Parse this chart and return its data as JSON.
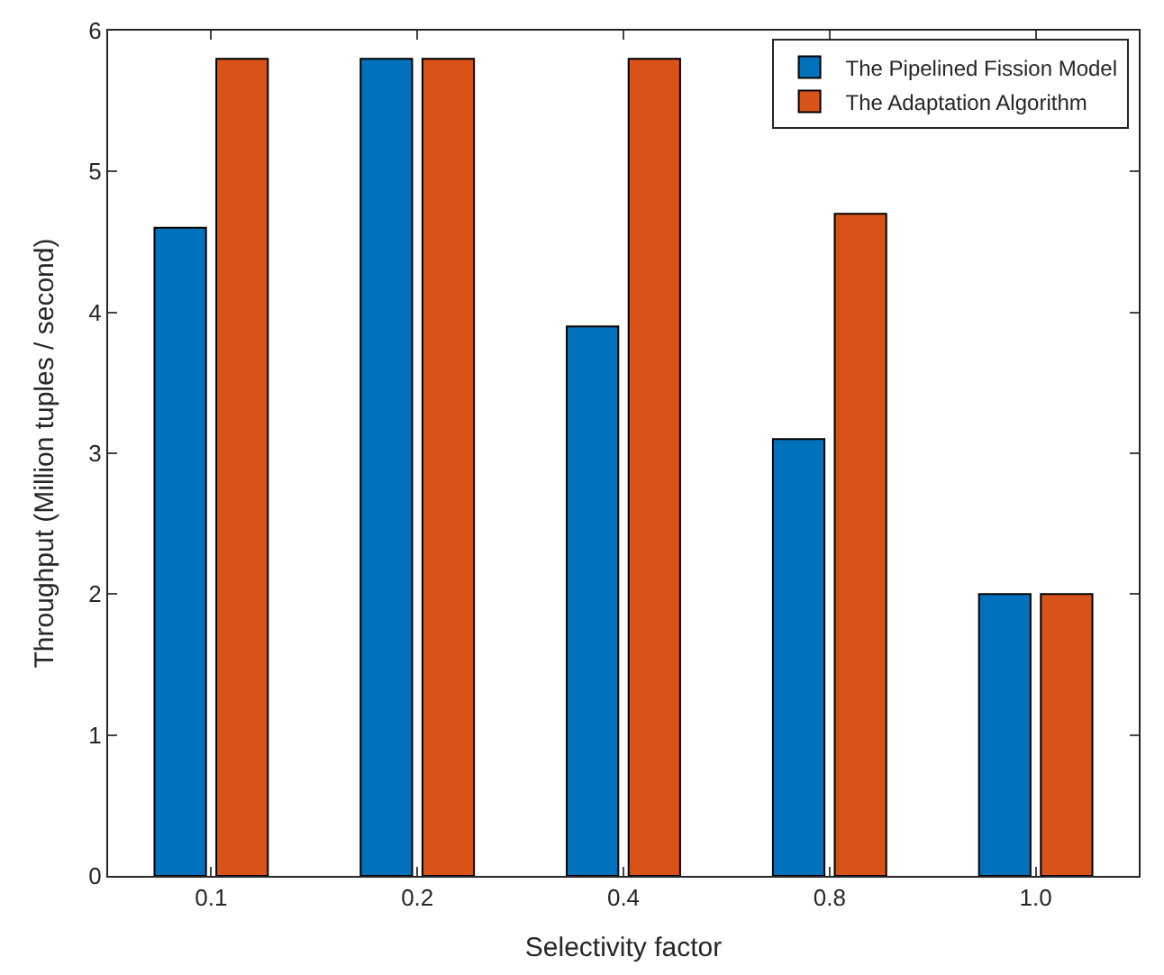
{
  "chart_data": {
    "type": "bar",
    "xlabel": "Selectivity factor",
    "ylabel": "Throughput (Million tuples / second)",
    "categories": [
      "0.1",
      "0.2",
      "0.4",
      "0.8",
      "1.0"
    ],
    "series": [
      {
        "name": "The Pipelined Fission Model",
        "color": "#0072bd",
        "values": [
          4.6,
          5.8,
          3.9,
          3.1,
          2.0
        ]
      },
      {
        "name": "The Adaptation Algorithm",
        "color": "#d95319",
        "values": [
          5.8,
          5.8,
          5.8,
          4.7,
          2.0
        ]
      }
    ],
    "ylim": [
      0,
      6
    ],
    "yticks": [
      0,
      1,
      2,
      3,
      4,
      5,
      6
    ],
    "legend": "top right"
  }
}
